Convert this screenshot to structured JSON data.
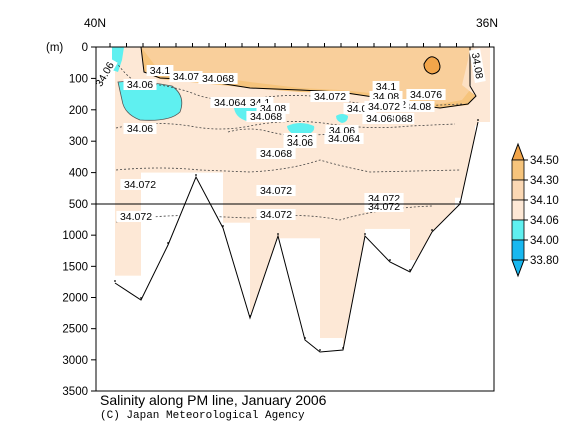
{
  "chart_data": {
    "type": "contour-section",
    "title": "Salinity along PM line, January 2006",
    "source": "(C) Japan Meteorological Agency",
    "x_top_labels": [
      "40N",
      "36N"
    ],
    "ylabel": "(m)",
    "y_ticks": [
      0,
      100,
      200,
      300,
      400,
      500,
      1000,
      1500,
      2000,
      2500,
      3000,
      3500
    ],
    "upper_panel": {
      "ylim": [
        0,
        500
      ]
    },
    "lower_panel": {
      "ylim": [
        500,
        3500
      ]
    },
    "colorbar": {
      "labels": [
        "34.50",
        "34.30",
        "34.10",
        "34.06",
        "34.00",
        "33.80"
      ],
      "colors": [
        "#f2a54a",
        "#f6c47c",
        "#fbd8b4",
        "#fde8d6",
        "#5ff0f0",
        "#18b8f0"
      ]
    },
    "contour_labels": [
      {
        "text": "34.06"
      },
      {
        "text": "34.1"
      },
      {
        "text": "34.07"
      },
      {
        "text": "34.068"
      },
      {
        "text": "34.06"
      },
      {
        "text": "34.06"
      },
      {
        "text": "34.064"
      },
      {
        "text": "34.1"
      },
      {
        "text": "34.08"
      },
      {
        "text": "34.068"
      },
      {
        "text": "34.072"
      },
      {
        "text": "34.1"
      },
      {
        "text": "34.08"
      },
      {
        "text": "34.076"
      },
      {
        "text": "34.08"
      },
      {
        "text": "34.06"
      },
      {
        "text": "34.072"
      },
      {
        "text": "34.072"
      },
      {
        "text": "34.06"
      },
      {
        "text": "34.06"
      },
      {
        "text": "34.068"
      },
      {
        "text": "068"
      },
      {
        "text": "34.06"
      },
      {
        "text": "34.064"
      },
      {
        "text": "34.068"
      },
      {
        "text": "34.072"
      },
      {
        "text": "34.072"
      },
      {
        "text": "34.072"
      },
      {
        "text": "34.072"
      },
      {
        "text": "34.072"
      },
      {
        "text": "34.072"
      },
      {
        "text": "34.08"
      }
    ],
    "station_max_depth_m": [
      1650,
      2100,
      400,
      800,
      2250,
      2950,
      1050,
      2650,
      2950,
      2950,
      900,
      1400,
      1650,
      1000,
      480,
      250
    ]
  }
}
